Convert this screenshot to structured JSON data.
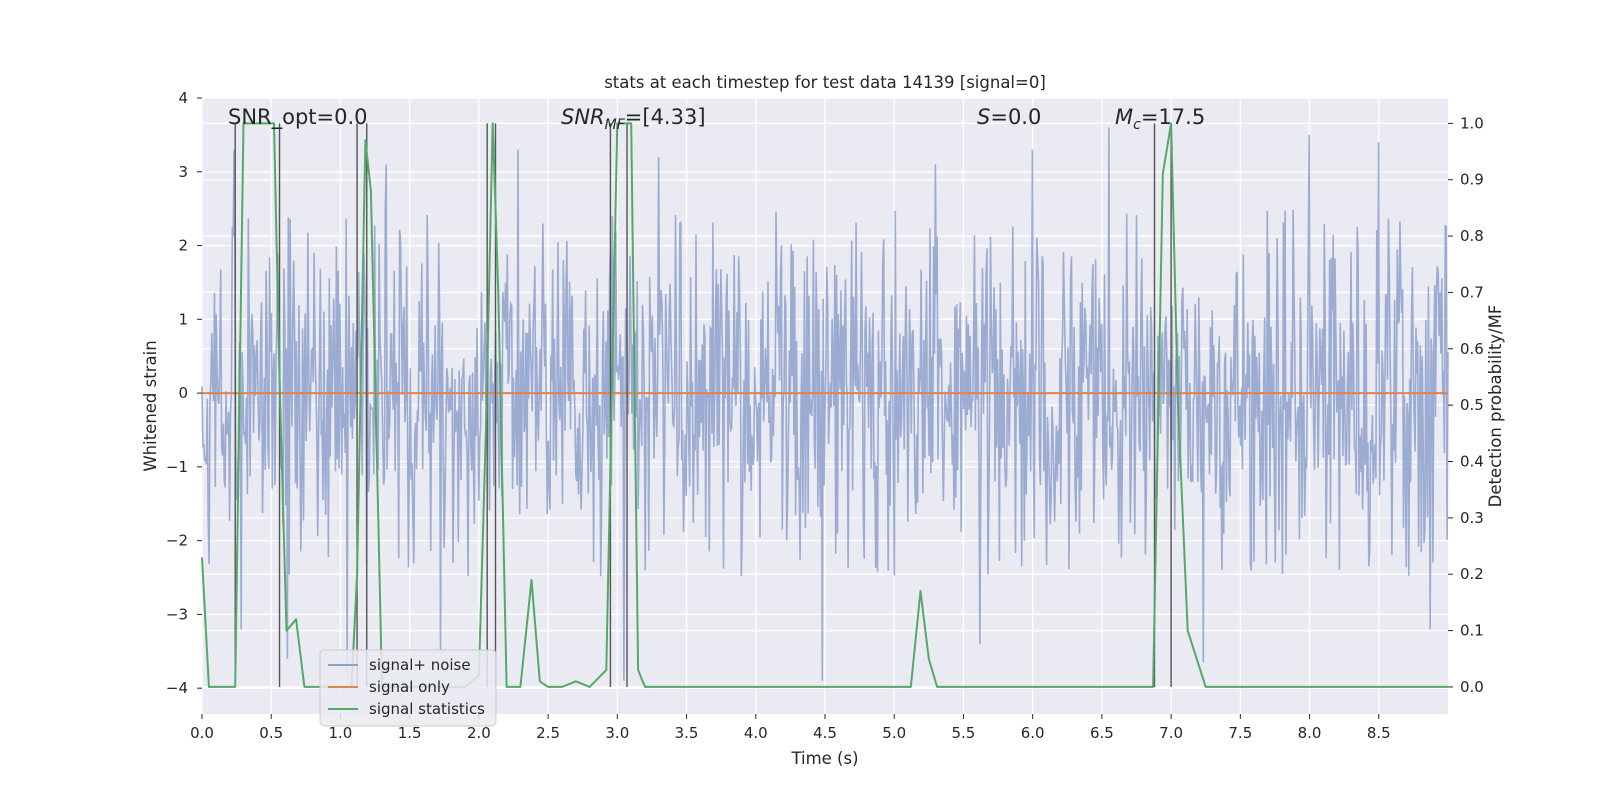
{
  "chart_data": {
    "type": "line",
    "title": "stats at each timestep for test data 14139 [signal=0]",
    "xlabel": "Time (s)",
    "ylabel": "Whitened strain",
    "y2label": "Detection probability/MF",
    "xlim": [
      0,
      9.0
    ],
    "ylim": [
      -4.35,
      4.0
    ],
    "y2lim": [
      -0.048,
      1.045
    ],
    "x_ticks": [
      "0.0",
      "0.5",
      "1.0",
      "1.5",
      "2.0",
      "2.5",
      "3.0",
      "3.5",
      "4.0",
      "4.5",
      "5.0",
      "5.5",
      "6.0",
      "6.5",
      "7.0",
      "7.5",
      "8.0",
      "8.5"
    ],
    "y_ticks": [
      "4",
      "3",
      "2",
      "1",
      "0",
      "−1",
      "−2",
      "−3",
      "−4"
    ],
    "y2_ticks": [
      "1.0",
      "0.9",
      "0.8",
      "0.7",
      "0.6",
      "0.5",
      "0.4",
      "0.3",
      "0.2",
      "0.1",
      "0.0"
    ],
    "grid": true,
    "legend_position": "lower-left",
    "annotations": {
      "snr_opt": "SNR_opt=0.0",
      "snr_mf_main": "SNR",
      "snr_mf_sub": "MF",
      "snr_mf_value": "=[4.33]",
      "s_main": "S",
      "s_value": "=0.0",
      "mc_main": "M",
      "mc_sub": "c",
      "mc_value": "=17.5"
    },
    "series": [
      {
        "name": "signal+ noise",
        "color": "#8da0cb",
        "axis": "left",
        "description": "whitened noise, mostly within ±2.5 with spikes to about ±3.5",
        "typical_range": [
          -2.5,
          2.5
        ],
        "peak_points": [
          {
            "x": 0.23,
            "y": 3.3
          },
          {
            "x": 0.28,
            "y": -3.2
          },
          {
            "x": 0.62,
            "y": -3.6
          },
          {
            "x": 1.05,
            "y": -3.8
          },
          {
            "x": 1.33,
            "y": 3.1
          },
          {
            "x": 1.72,
            "y": -3.5
          },
          {
            "x": 2.28,
            "y": 3.3
          },
          {
            "x": 3.05,
            "y": -3.9
          },
          {
            "x": 3.3,
            "y": 3.2
          },
          {
            "x": 4.48,
            "y": -3.9
          },
          {
            "x": 5.3,
            "y": 3.1
          },
          {
            "x": 5.62,
            "y": -3.4
          },
          {
            "x": 6.0,
            "y": 3.3
          },
          {
            "x": 6.55,
            "y": 3.6
          },
          {
            "x": 7.23,
            "y": -3.65
          },
          {
            "x": 8.0,
            "y": 3.5
          },
          {
            "x": 8.5,
            "y": 3.4
          },
          {
            "x": 8.87,
            "y": -3.2
          }
        ]
      },
      {
        "name": "signal only",
        "color": "#dd8452",
        "axis": "left",
        "x": [
          0,
          9.0
        ],
        "y": [
          0,
          0
        ]
      },
      {
        "name": "signal statistics",
        "color": "#55a868",
        "axis": "right",
        "x": [
          0,
          0.05,
          0.1,
          0.17,
          0.24,
          0.3,
          0.37,
          0.44,
          0.52,
          0.56,
          0.61,
          0.68,
          0.74,
          0.82,
          0.88,
          0.95,
          1.02,
          1.08,
          1.12,
          1.18,
          1.22,
          1.25,
          1.3,
          1.35,
          1.5,
          1.6,
          1.7,
          1.8,
          1.9,
          2.0,
          2.05,
          2.1,
          2.14,
          2.2,
          2.3,
          2.38,
          2.44,
          2.5,
          2.6,
          2.7,
          2.8,
          2.92,
          3.0,
          3.05,
          3.1,
          3.15,
          3.2,
          3.5,
          4.0,
          4.5,
          5.0,
          5.12,
          5.19,
          5.25,
          5.31,
          5.4,
          6.0,
          6.5,
          6.7,
          6.78,
          6.87,
          6.94,
          7.0,
          7.05,
          7.12,
          7.25,
          7.37,
          7.5,
          8.0,
          8.5,
          9.0
        ],
        "y": [
          0.23,
          0.0,
          0.0,
          0.0,
          0.0,
          1.0,
          1.0,
          1.0,
          1.0,
          0.55,
          0.1,
          0.12,
          0.0,
          0.0,
          0.0,
          0.0,
          0.0,
          0.0,
          0.2,
          0.97,
          0.88,
          0.55,
          0.0,
          0.0,
          0.0,
          0.0,
          0.0,
          0.0,
          0.0,
          0.02,
          0.45,
          1.0,
          0.7,
          0.0,
          0.0,
          0.19,
          0.01,
          0.0,
          0.0,
          0.01,
          0.0,
          0.03,
          1.0,
          1.0,
          1.0,
          0.03,
          0.0,
          0.0,
          0.0,
          0.0,
          0.0,
          0.0,
          0.17,
          0.05,
          0.0,
          0.0,
          0.0,
          0.0,
          0.0,
          0.0,
          0.0,
          0.91,
          1.0,
          0.5,
          0.1,
          0.0,
          0.0,
          0.0,
          0.0,
          0.0,
          0.0
        ]
      }
    ],
    "vertical_markers_s": [
      0.24,
      0.56,
      1.12,
      1.19,
      2.06,
      2.12,
      2.95,
      3.07,
      6.88,
      7.0
    ]
  }
}
